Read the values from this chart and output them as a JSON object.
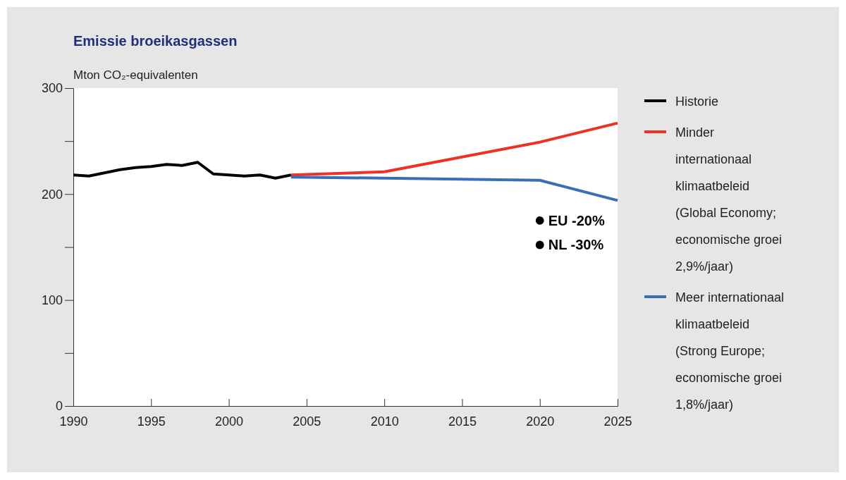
{
  "chart_data": {
    "type": "line",
    "title": "Emissie broeikasgassen",
    "ylabel": "Mton CO₂-equivalenten",
    "xlim": [
      1990,
      2025
    ],
    "xticks": [
      1990,
      1995,
      2000,
      2005,
      2010,
      2015,
      2020,
      2025
    ],
    "ylim": [
      0,
      300
    ],
    "yticks": [
      0,
      {
        "value": 50,
        "label": null
      },
      100,
      {
        "value": 150,
        "label": null
      },
      200,
      {
        "value": 250,
        "label": null
      },
      300
    ],
    "grid": false,
    "legend": "right",
    "marker": "none",
    "line_style": "solid",
    "series": [
      {
        "name": "Historie",
        "color": "#000000",
        "x": [
          1990,
          1991,
          1992,
          1993,
          1994,
          1995,
          1996,
          1997,
          1998,
          1999,
          2000,
          2001,
          2002,
          2003,
          2004
        ],
        "values": [
          218,
          217,
          220,
          223,
          225,
          226,
          228,
          227,
          230,
          219,
          218,
          217,
          218,
          215,
          218
        ]
      },
      {
        "name": "Minder internationaal klimaatbeleid (Global Economy; economische groei 2,9%/jaar)",
        "color": "#ee3124",
        "x": [
          2004,
          2010,
          2020,
          2025
        ],
        "values": [
          218,
          221,
          249,
          267
        ]
      },
      {
        "name": "Meer internationaal klimaatbeleid (Strong Europe; economische groei 1,8%/jaar)",
        "color": "#3a6fb7",
        "x": [
          2004,
          2010,
          2020,
          2025
        ],
        "values": [
          216,
          215,
          213,
          194
        ]
      },
      {
        "type": "scatter",
        "marker": "circle",
        "color": "#000000",
        "x": [
          2020,
          2020
        ],
        "values": [
          175,
          152
        ]
      }
    ],
    "annotations": [
      {
        "text": "EU -20%",
        "x": 2020,
        "y": 175
      },
      {
        "text": "NL -30%",
        "x": 2020,
        "y": 152
      }
    ]
  }
}
